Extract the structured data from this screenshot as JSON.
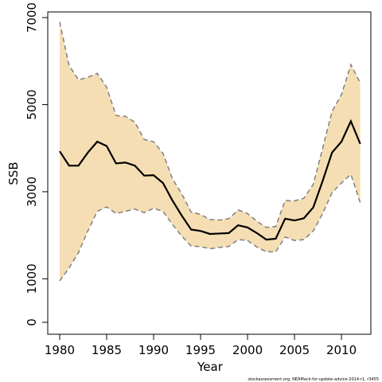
{
  "chart_data": {
    "type": "line",
    "x_label": "Year",
    "y_label": "SSB",
    "footer": "stockassessment.org, NEAMack-for-update-advice-2014-r1, r3455",
    "x": [
      1980,
      1981,
      1982,
      1983,
      1984,
      1985,
      1986,
      1987,
      1988,
      1989,
      1990,
      1991,
      1992,
      1993,
      1994,
      1995,
      1996,
      1997,
      1998,
      1999,
      2000,
      2001,
      2002,
      2003,
      2004,
      2005,
      2006,
      2007,
      2008,
      2009,
      2010,
      2011,
      2012
    ],
    "values": [
      3930,
      3600,
      3600,
      3900,
      4150,
      4050,
      3650,
      3670,
      3600,
      3370,
      3380,
      3200,
      2800,
      2450,
      2130,
      2100,
      2030,
      2040,
      2050,
      2230,
      2180,
      2050,
      1900,
      1920,
      2380,
      2340,
      2390,
      2640,
      3250,
      3900,
      4150,
      4620,
      4100
    ],
    "upper": [
      6900,
      5900,
      5570,
      5630,
      5720,
      5400,
      4750,
      4730,
      4600,
      4200,
      4150,
      3880,
      3300,
      2950,
      2530,
      2480,
      2360,
      2350,
      2380,
      2580,
      2500,
      2320,
      2180,
      2200,
      2800,
      2790,
      2850,
      3170,
      4000,
      4850,
      5230,
      5920,
      5500
    ],
    "lower": [
      950,
      1250,
      1600,
      2100,
      2550,
      2650,
      2500,
      2550,
      2600,
      2520,
      2620,
      2550,
      2250,
      1980,
      1750,
      1740,
      1690,
      1720,
      1740,
      1900,
      1880,
      1730,
      1620,
      1620,
      1960,
      1880,
      1900,
      2100,
      2500,
      2980,
      3200,
      3400,
      2750
    ],
    "color": "#000000",
    "band_color": "#f5deb3",
    "bound_color": "#808080",
    "xlim": [
      1978.73,
      2013.13
    ],
    "ylim": [
      -274,
      7130
    ],
    "xticks": [
      1980,
      1985,
      1990,
      1995,
      2000,
      2005,
      2010
    ],
    "yticks": [
      0,
      1000,
      3000,
      5000,
      7000
    ]
  }
}
